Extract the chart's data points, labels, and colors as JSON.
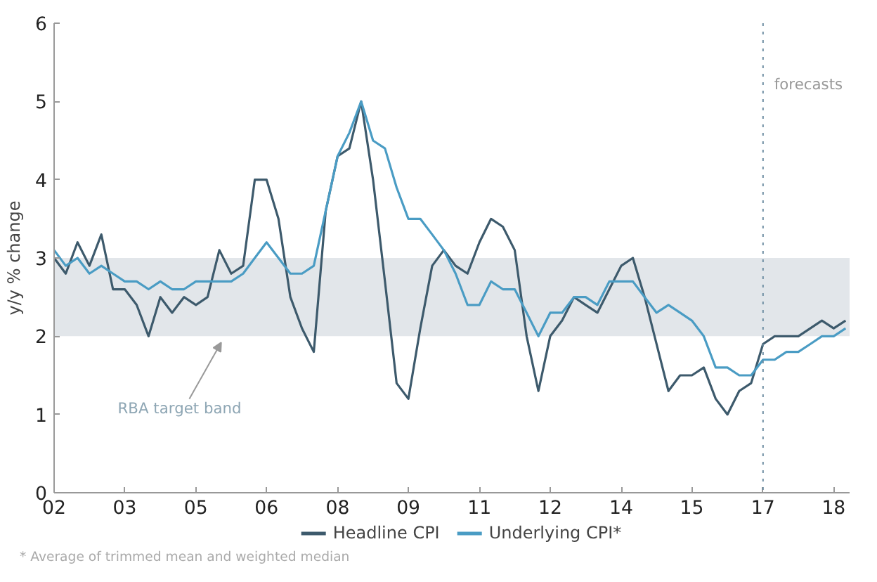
{
  "chart_data": {
    "type": "line",
    "ylabel": "y/y % change",
    "x": [
      "2002-01",
      "2002-04",
      "2002-07",
      "2002-10",
      "2003-01",
      "2003-04",
      "2003-07",
      "2003-10",
      "2004-01",
      "2004-04",
      "2004-07",
      "2004-10",
      "2005-01",
      "2005-04",
      "2005-07",
      "2005-10",
      "2006-01",
      "2006-04",
      "2006-07",
      "2006-10",
      "2007-01",
      "2007-04",
      "2007-07",
      "2007-10",
      "2008-01",
      "2008-04",
      "2008-07",
      "2008-10",
      "2009-01",
      "2009-04",
      "2009-07",
      "2009-10",
      "2010-01",
      "2010-04",
      "2010-07",
      "2010-10",
      "2011-01",
      "2011-04",
      "2011-07",
      "2011-10",
      "2012-01",
      "2012-04",
      "2012-07",
      "2012-10",
      "2013-01",
      "2013-04",
      "2013-07",
      "2013-10",
      "2014-01",
      "2014-04",
      "2014-07",
      "2014-10",
      "2015-01",
      "2015-04",
      "2015-07",
      "2015-10",
      "2016-01",
      "2016-04",
      "2016-07",
      "2016-10",
      "2017-01",
      "2017-04",
      "2017-07",
      "2017-10",
      "2018-01",
      "2018-04",
      "2018-07",
      "2018-10"
    ],
    "series": [
      {
        "name": "Headline CPI",
        "color": "#3d5a6c",
        "values": [
          3.0,
          2.8,
          3.2,
          2.9,
          3.3,
          2.6,
          2.6,
          2.4,
          2.0,
          2.5,
          2.3,
          2.5,
          2.4,
          2.5,
          3.1,
          2.8,
          2.9,
          4.0,
          4.0,
          3.5,
          2.5,
          2.1,
          1.8,
          3.6,
          4.3,
          4.4,
          5.0,
          4.0,
          2.7,
          1.4,
          1.2,
          2.1,
          2.9,
          3.1,
          2.9,
          2.8,
          3.2,
          3.5,
          3.4,
          3.1,
          2.0,
          1.3,
          2.0,
          2.2,
          2.5,
          2.4,
          2.3,
          2.6,
          2.9,
          3.0,
          2.5,
          1.9,
          1.3,
          1.5,
          1.5,
          1.6,
          1.2,
          1.0,
          1.3,
          1.4,
          1.9,
          2.0,
          2.0,
          2.0,
          2.1,
          2.2,
          2.1,
          2.2
        ]
      },
      {
        "name": "Underlying CPI*",
        "color": "#4a9cc4",
        "values": [
          3.1,
          2.9,
          3.0,
          2.8,
          2.9,
          2.8,
          2.7,
          2.7,
          2.6,
          2.7,
          2.6,
          2.6,
          2.7,
          2.7,
          2.7,
          2.7,
          2.8,
          3.0,
          3.2,
          3.0,
          2.8,
          2.8,
          2.9,
          3.6,
          4.3,
          4.6,
          5.0,
          4.5,
          4.4,
          3.9,
          3.5,
          3.5,
          3.3,
          3.1,
          2.8,
          2.4,
          2.4,
          2.7,
          2.6,
          2.6,
          2.3,
          2.0,
          2.3,
          2.3,
          2.5,
          2.5,
          2.4,
          2.7,
          2.7,
          2.7,
          2.5,
          2.3,
          2.4,
          2.3,
          2.2,
          2.0,
          1.6,
          1.6,
          1.5,
          1.5,
          1.7,
          1.7,
          1.8,
          1.8,
          1.9,
          2.0,
          2.0,
          2.1
        ]
      }
    ],
    "xlim": [
      "2002-01",
      "2018-11"
    ],
    "xticks": [
      {
        "value": "2002-01",
        "label": "02"
      },
      {
        "value": "2003-07",
        "label": "03"
      },
      {
        "value": "2005-01",
        "label": "05"
      },
      {
        "value": "2006-07",
        "label": "06"
      },
      {
        "value": "2008-01",
        "label": "08"
      },
      {
        "value": "2009-07",
        "label": "09"
      },
      {
        "value": "2011-01",
        "label": "11"
      },
      {
        "value": "2012-07",
        "label": "12"
      },
      {
        "value": "2014-01",
        "label": "14"
      },
      {
        "value": "2015-07",
        "label": "15"
      },
      {
        "value": "2017-01",
        "label": "17"
      },
      {
        "value": "2018-07",
        "label": "18"
      }
    ],
    "ylim": [
      0,
      6
    ],
    "yticks": [
      0,
      1,
      2,
      3,
      4,
      5,
      6
    ],
    "bands": [
      {
        "axis": "y",
        "from": 2,
        "to": 3,
        "color": "#e2e6ea"
      }
    ],
    "ref_lines": [
      {
        "axis": "x",
        "value": "2017-01",
        "label": "forecasts",
        "color": "#6f8fa3",
        "line_style": "dotted"
      }
    ],
    "annotations": [
      "RBA target band",
      "* Average of trimmed mean and weighted median"
    ],
    "grid": false,
    "legend": "bottom",
    "line_style": "solid",
    "marker": "none"
  }
}
